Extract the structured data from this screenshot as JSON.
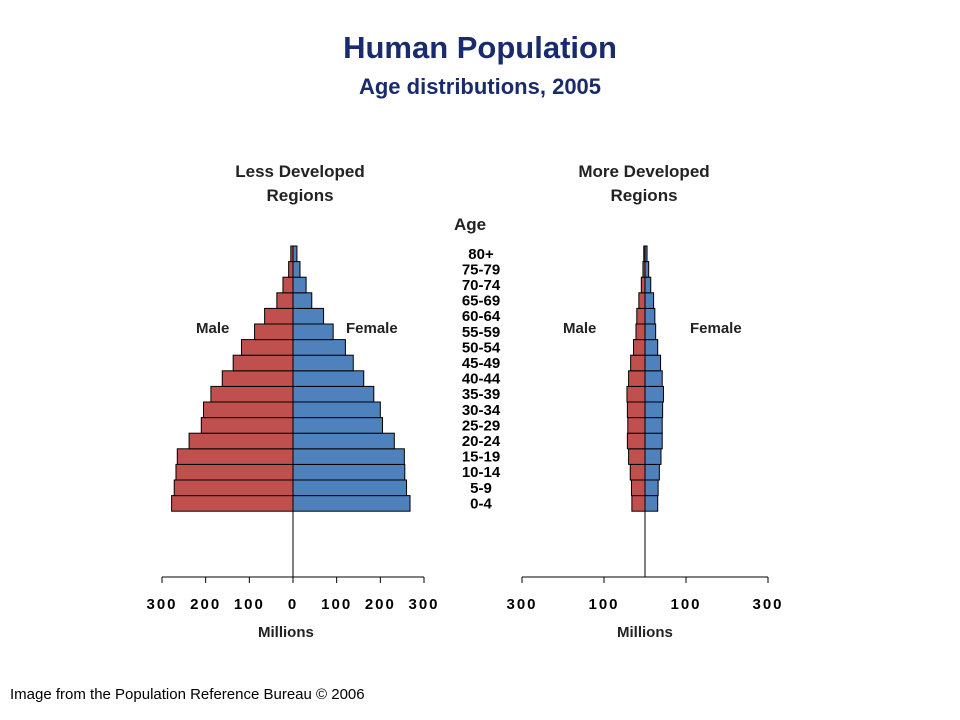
{
  "title": "Human Population",
  "subtitle": "Age distributions, 2005",
  "credit": "Image from the Population Reference Bureau © 2006",
  "colors": {
    "male": "#c0504d",
    "female": "#4f81bd",
    "title": "#1a2b6d"
  },
  "chart_data": [
    {
      "type": "bar",
      "orientation": "population-pyramid",
      "title": "Less Developed Regions",
      "title_lines": [
        "Less Developed",
        "Regions"
      ],
      "left_label": "Male",
      "right_label": "Female",
      "center_label": "Age",
      "xlabel": "Millions",
      "xlim": [
        -300,
        300
      ],
      "xticks": [
        -300,
        -200,
        -100,
        0,
        100,
        200,
        300
      ],
      "xtick_labels": [
        "300",
        "200",
        "100",
        "0",
        "100",
        "200",
        "300"
      ],
      "categories": [
        "0-4",
        "5-9",
        "10-14",
        "15-19",
        "20-24",
        "25-29",
        "30-34",
        "35-39",
        "40-44",
        "45-49",
        "50-54",
        "55-59",
        "60-64",
        "65-69",
        "70-74",
        "75-79",
        "80+"
      ],
      "series": [
        {
          "name": "Male",
          "values": [
            278,
            272,
            268,
            265,
            238,
            210,
            205,
            188,
            162,
            137,
            118,
            88,
            65,
            37,
            23,
            10,
            5
          ]
        },
        {
          "name": "Female",
          "values": [
            268,
            260,
            256,
            255,
            232,
            205,
            200,
            185,
            162,
            138,
            120,
            92,
            70,
            43,
            30,
            16,
            9
          ]
        }
      ]
    },
    {
      "type": "bar",
      "orientation": "population-pyramid",
      "title": "More Developed Regions",
      "title_lines": [
        "More Developed",
        "Regions"
      ],
      "left_label": "Male",
      "right_label": "Female",
      "xlabel": "Millions",
      "xlim": [
        -300,
        300
      ],
      "xticks": [
        -300,
        -100,
        100,
        300
      ],
      "xtick_labels": [
        "300",
        "100",
        "100",
        "300"
      ],
      "categories": [
        "0-4",
        "5-9",
        "10-14",
        "15-19",
        "20-24",
        "25-29",
        "30-34",
        "35-39",
        "40-44",
        "45-49",
        "50-54",
        "55-59",
        "60-64",
        "65-69",
        "70-74",
        "75-79",
        "80+"
      ],
      "series": [
        {
          "name": "Male",
          "values": [
            32,
            33,
            36,
            40,
            43,
            42,
            43,
            44,
            40,
            35,
            28,
            22,
            20,
            15,
            9,
            5,
            3
          ]
        },
        {
          "name": "Female",
          "values": [
            31,
            32,
            35,
            39,
            42,
            42,
            43,
            45,
            42,
            38,
            31,
            26,
            24,
            21,
            14,
            9,
            5
          ]
        }
      ]
    }
  ]
}
